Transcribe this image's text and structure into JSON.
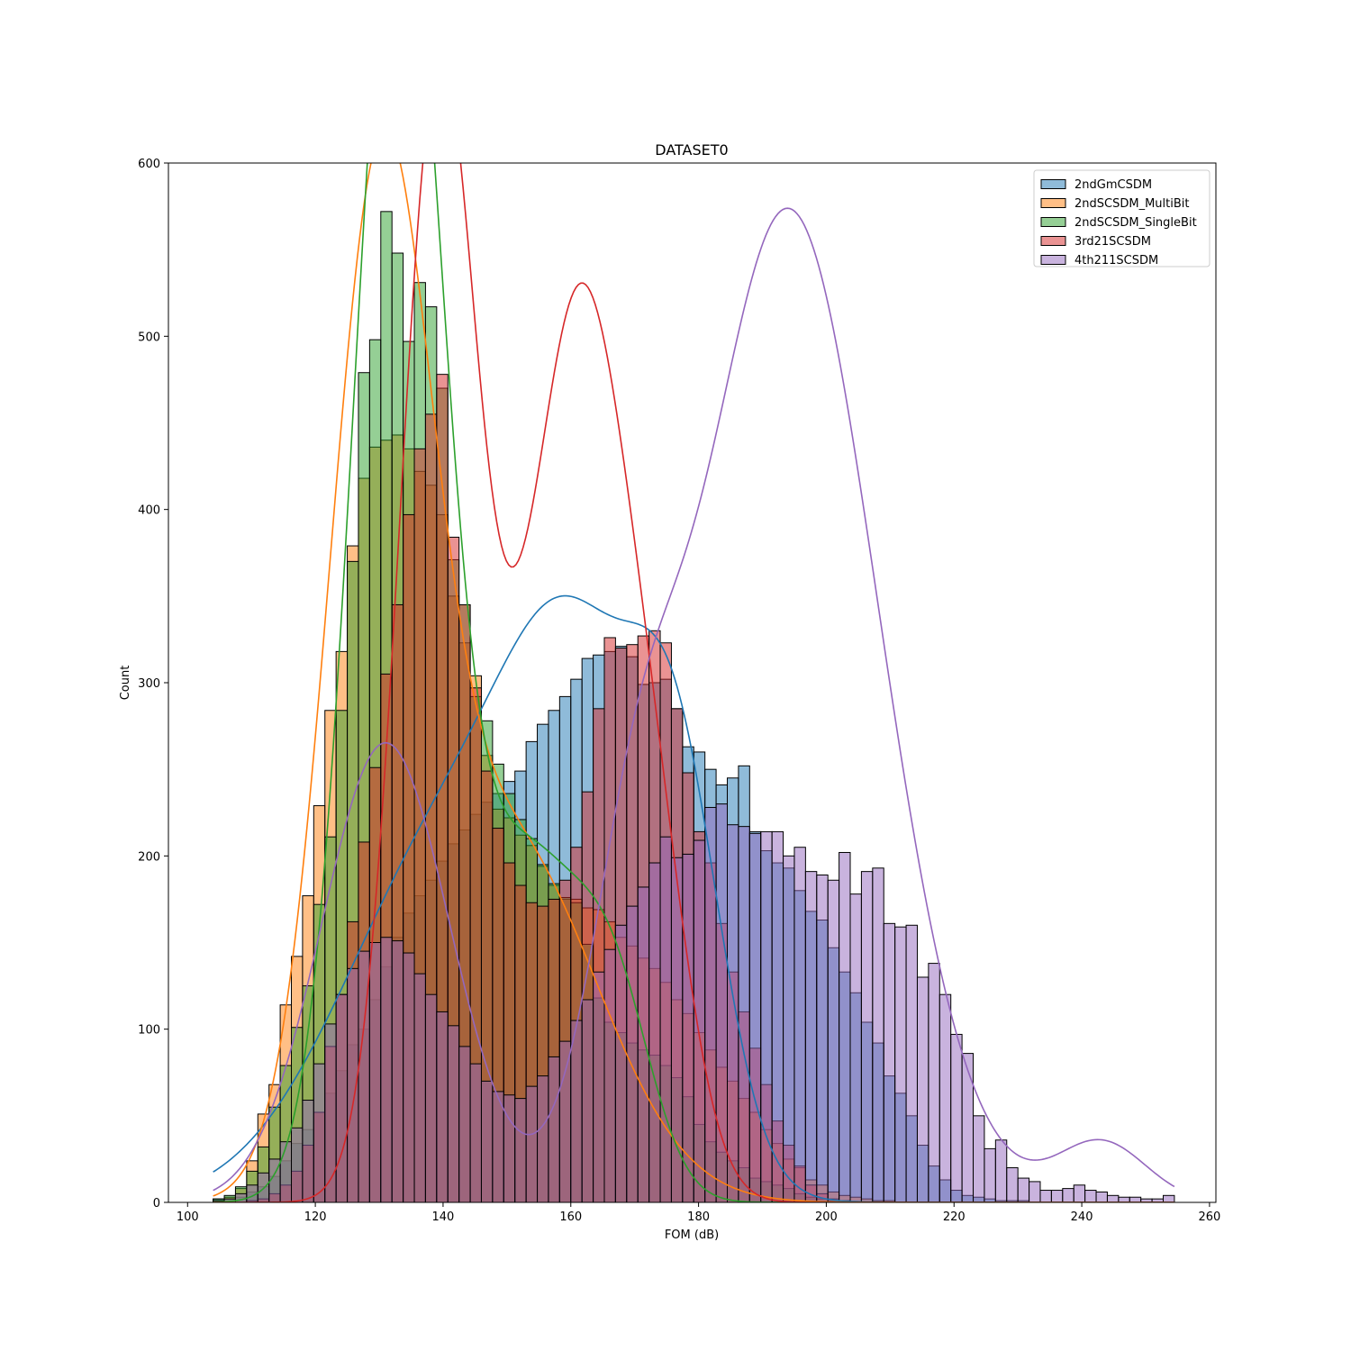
{
  "chart_data": {
    "type": "histogram",
    "title": "DATASET0",
    "xlabel": "FOM (dB)",
    "ylabel": "Count",
    "xlim": [
      97,
      261
    ],
    "ylim": [
      0,
      600
    ],
    "xticks": [
      100,
      120,
      140,
      160,
      180,
      200,
      220,
      240,
      260
    ],
    "yticks": [
      0,
      100,
      200,
      300,
      400,
      500,
      600
    ],
    "grid": false,
    "legend_position": "top-right",
    "bin_start": 104,
    "bin_width": 1.75,
    "series": [
      {
        "name": "2ndGmCSDM",
        "color": "#1f77b4",
        "counts": [
          2,
          2,
          3,
          6,
          9,
          15,
          24,
          34,
          42,
          52,
          63,
          76,
          91,
          100,
          117,
          136,
          153,
          167,
          177,
          186,
          197,
          207,
          215,
          224,
          231,
          236,
          243,
          249,
          266,
          276,
          284,
          292,
          302,
          314,
          316,
          318,
          321,
          315,
          299,
          300,
          302,
          285,
          263,
          260,
          250,
          241,
          245,
          252,
          214,
          203,
          196,
          193,
          180,
          168,
          163,
          147,
          133,
          121,
          104,
          92,
          73,
          63,
          50,
          33,
          21,
          13,
          7,
          4,
          3,
          2,
          1,
          1,
          1,
          0,
          0,
          0,
          0,
          0,
          0,
          0,
          0,
          0,
          0,
          0,
          0,
          0
        ]
      },
      {
        "name": "2ndSCSDM_MultiBit",
        "color": "#ff7f0e",
        "counts": [
          1,
          3,
          8,
          24,
          51,
          68,
          114,
          142,
          177,
          229,
          284,
          318,
          379,
          418,
          436,
          440,
          443,
          435,
          422,
          414,
          397,
          350,
          323,
          304,
          258,
          227,
          222,
          212,
          206,
          194,
          183,
          175,
          175,
          170,
          169,
          162,
          153,
          148,
          141,
          135,
          127,
          117,
          109,
          98,
          88,
          78,
          70,
          60,
          52,
          42,
          34,
          25,
          20,
          13,
          10,
          6,
          4,
          3,
          2,
          1,
          1,
          0,
          0,
          0,
          0,
          0,
          0,
          0,
          0,
          0,
          0,
          0,
          0,
          0,
          0,
          0,
          0,
          0,
          0,
          0,
          0,
          0,
          0,
          0,
          0,
          0
        ]
      },
      {
        "name": "2ndSCSDM_SingleBit",
        "color": "#2ca02c",
        "counts": [
          2,
          4,
          9,
          18,
          32,
          55,
          79,
          101,
          125,
          172,
          211,
          284,
          370,
          479,
          498,
          572,
          548,
          497,
          531,
          517,
          470,
          371,
          345,
          292,
          278,
          253,
          236,
          221,
          210,
          195,
          184,
          176,
          173,
          149,
          118,
          104,
          98,
          92,
          88,
          85,
          79,
          72,
          61,
          45,
          35,
          29,
          24,
          20,
          14,
          12,
          10,
          8,
          5,
          3,
          2,
          1,
          1,
          0,
          0,
          0,
          0,
          0,
          0,
          0,
          0,
          0,
          0,
          0,
          0,
          0,
          0,
          0,
          0,
          0,
          0,
          0,
          0,
          0,
          0,
          0,
          0,
          0,
          0,
          0,
          0,
          0
        ]
      },
      {
        "name": "3rd21SCSDM",
        "color": "#d62728",
        "counts": [
          0,
          0,
          0,
          1,
          2,
          5,
          10,
          18,
          33,
          52,
          90,
          120,
          162,
          208,
          251,
          305,
          345,
          397,
          435,
          455,
          478,
          384,
          345,
          297,
          249,
          216,
          196,
          183,
          173,
          171,
          175,
          186,
          205,
          237,
          285,
          326,
          320,
          322,
          327,
          330,
          323,
          285,
          248,
          214,
          196,
          161,
          133,
          110,
          89,
          68,
          47,
          33,
          21,
          10,
          5,
          2,
          1,
          0,
          0,
          0,
          0,
          0,
          0,
          0,
          0,
          0,
          0,
          0,
          0,
          0,
          0,
          0,
          0,
          0,
          0,
          0,
          0,
          0,
          0,
          0,
          0,
          0,
          0,
          0,
          0,
          0
        ]
      },
      {
        "name": "4th211SCSDM",
        "color": "#9467bd",
        "counts": [
          1,
          2,
          5,
          10,
          17,
          25,
          35,
          43,
          59,
          80,
          103,
          120,
          135,
          145,
          150,
          153,
          151,
          144,
          132,
          120,
          110,
          102,
          90,
          80,
          70,
          64,
          62,
          60,
          67,
          73,
          84,
          93,
          105,
          117,
          133,
          146,
          160,
          171,
          182,
          196,
          211,
          199,
          201,
          209,
          228,
          230,
          218,
          217,
          213,
          214,
          214,
          200,
          205,
          191,
          189,
          186,
          202,
          178,
          191,
          193,
          161,
          159,
          160,
          130,
          138,
          120,
          97,
          86,
          50,
          31,
          36,
          20,
          14,
          12,
          7,
          7,
          8,
          10,
          7,
          6,
          4,
          3,
          3,
          2,
          2,
          4
        ]
      }
    ],
    "kde": [
      {
        "name": "2ndGmCSDM",
        "components": [
          {
            "mean": 142,
            "sd": 17,
            "count": 5200
          },
          {
            "mean": 162,
            "sd": 11,
            "count": 3500
          },
          {
            "mean": 177,
            "sd": 7,
            "count": 1800
          }
        ]
      },
      {
        "name": "2ndSCSDM_MultiBit",
        "components": [
          {
            "mean": 130,
            "sd": 8,
            "count": 6200
          },
          {
            "mean": 150,
            "sd": 14,
            "count": 4200
          }
        ]
      },
      {
        "name": "2ndSCSDM_SingleBit",
        "components": [
          {
            "mean": 133,
            "sd": 7,
            "count": 7600
          },
          {
            "mean": 153,
            "sd": 9,
            "count": 2500
          },
          {
            "mean": 167,
            "sd": 6,
            "count": 800
          }
        ]
      },
      {
        "name": "3rd21SCSDM",
        "components": [
          {
            "mean": 139,
            "sd": 6,
            "count": 5200
          },
          {
            "mean": 151,
            "sd": 8,
            "count": 1800
          },
          {
            "mean": 162,
            "sd": 7,
            "count": 4400
          },
          {
            "mean": 173,
            "sd": 6,
            "count": 1400
          }
        ]
      },
      {
        "name": "4th211SCSDM",
        "components": [
          {
            "mean": 131,
            "sd": 10,
            "count": 3800
          },
          {
            "mean": 170,
            "sd": 7,
            "count": 1500
          },
          {
            "mean": 194,
            "sd": 14,
            "count": 11500
          },
          {
            "mean": 243,
            "sd": 7,
            "count": 350
          }
        ]
      }
    ]
  }
}
